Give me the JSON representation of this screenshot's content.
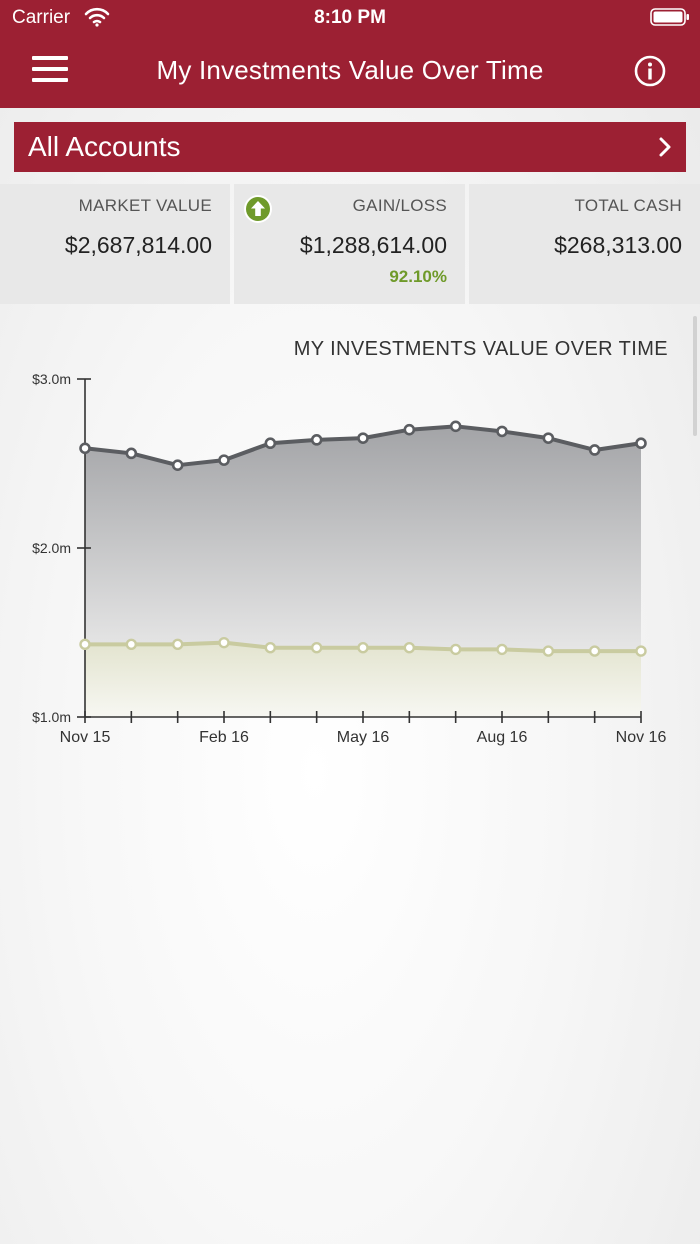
{
  "status_bar": {
    "carrier": "Carrier",
    "time": "8:10 PM"
  },
  "nav": {
    "title": "My Investments Value Over Time",
    "menu_icon": "hamburger-menu-icon",
    "info_icon": "info-icon"
  },
  "accounts": {
    "label": "All Accounts",
    "chevron_icon": "chevron-right-icon"
  },
  "summary": {
    "market_value": {
      "label": "MARKET VALUE",
      "value": "$2,687,814.00"
    },
    "gain_loss": {
      "label": "GAIN/LOSS",
      "value": "$1,288,614.00",
      "percent": "92.10%",
      "icon": "arrow-up-circle-icon",
      "color": "#6f9a2a"
    },
    "total_cash": {
      "label": "TOTAL CASH",
      "value": "$268,313.00"
    }
  },
  "chart_data": {
    "type": "area",
    "title": "MY INVESTMENTS VALUE OVER TIME",
    "xlabel": "",
    "ylabel": "",
    "x": [
      "Nov 15",
      "Dec 15",
      "Jan 16",
      "Feb 16",
      "Mar 16",
      "Apr 16",
      "May 16",
      "Jun 16",
      "Jul 16",
      "Aug 16",
      "Sep 16",
      "Oct 16",
      "Nov 16"
    ],
    "x_tick_labels": [
      "Nov 15",
      "Feb 16",
      "May 16",
      "Aug 16",
      "Nov 16"
    ],
    "y_tick_labels": [
      "$1.0m",
      "$2.0m",
      "$3.0m"
    ],
    "ylim": [
      1.0,
      3.0
    ],
    "y_unit": "millions USD",
    "grid": false,
    "series": [
      {
        "color": "#5b5d61",
        "values": [
          2.59,
          2.56,
          2.49,
          2.52,
          2.62,
          2.64,
          2.65,
          2.7,
          2.72,
          2.69,
          2.65,
          2.58,
          2.62
        ]
      },
      {
        "color": "#c9cba0",
        "values": [
          1.43,
          1.43,
          1.43,
          1.44,
          1.41,
          1.41,
          1.41,
          1.41,
          1.4,
          1.4,
          1.39,
          1.39,
          1.39
        ]
      }
    ]
  }
}
